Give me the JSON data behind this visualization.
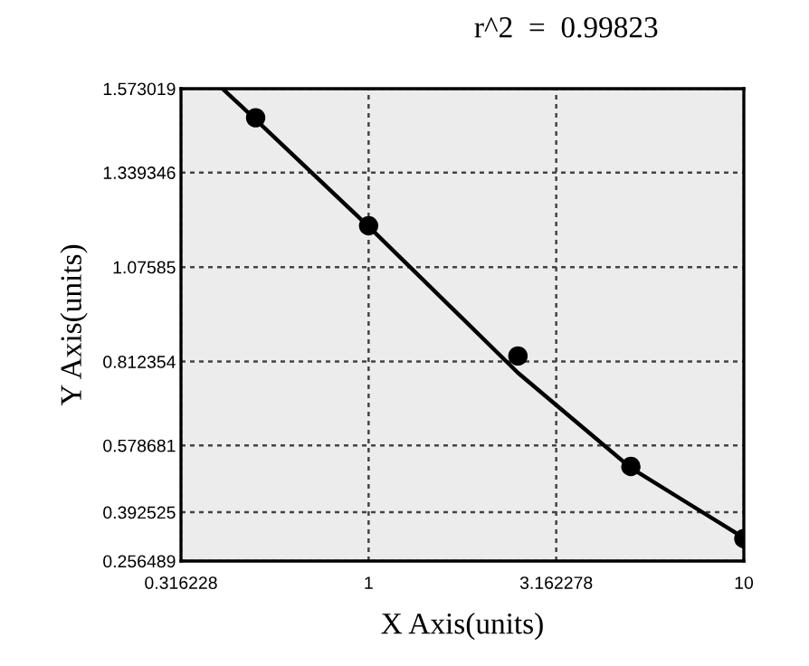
{
  "chart_data": {
    "type": "scatter",
    "xlabel": "X Axis(units)",
    "ylabel": "Y Axis(units)",
    "annotations": [
      "r^2  =  0.99823"
    ],
    "log": "x",
    "grid": true,
    "marker": "circle",
    "legend": false,
    "xlim": [
      0.316228,
      10
    ],
    "xticks": [
      0.316228,
      1,
      3.162278,
      10
    ],
    "ylim": [
      0.256489,
      1.573019
    ],
    "yticks": [
      0.256489,
      0.392525,
      0.578681,
      0.812354,
      1.07585,
      1.339346,
      1.573019
    ],
    "series": [
      {
        "color": "#000000",
        "x": [
          0.5,
          1,
          2.5,
          5,
          10
        ],
        "values": [
          1.492,
          1.191,
          0.828,
          0.52,
          0.319
        ]
      },
      {
        "type": "line",
        "color": "#000000",
        "x": [
          0.408,
          0.5,
          1,
          2.5,
          5,
          10
        ],
        "values": [
          1.573,
          1.487,
          1.189,
          0.781,
          0.516,
          0.321
        ],
        "marker": "none",
        "line_style": "solid"
      }
    ]
  }
}
